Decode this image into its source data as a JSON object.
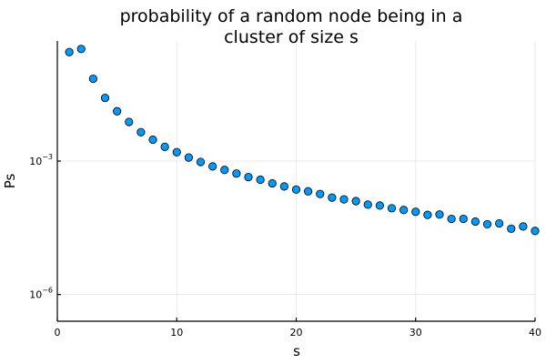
{
  "chart_data": {
    "type": "scatter",
    "title_lines": [
      "probability of a random node being in a",
      "cluster of size s"
    ],
    "xlabel": "s",
    "ylabel": "Ps",
    "xlim": [
      0,
      40
    ],
    "ylim_log10": [
      -6.6,
      -0.3
    ],
    "yscale": "log10",
    "grid": true,
    "legend": "none",
    "xticks": [
      0,
      10,
      20,
      30,
      40
    ],
    "yticks": [
      {
        "value_log10": -3,
        "base": "10",
        "exponent": "−3"
      },
      {
        "value_log10": -6,
        "base": "10",
        "exponent": "−6"
      }
    ],
    "marker_color": "#009AFA",
    "series": [
      {
        "x": [
          1,
          2,
          3,
          4,
          5,
          6,
          7,
          8,
          9,
          10,
          11,
          12,
          13,
          14,
          15,
          16,
          17,
          18,
          19,
          20,
          21,
          22,
          23,
          24,
          25,
          26,
          27,
          28,
          29,
          30,
          31,
          32,
          33,
          34,
          35,
          36,
          37,
          38,
          39,
          40
        ],
        "y_log10": [
          -0.55,
          -0.48,
          -1.15,
          -1.58,
          -1.88,
          -2.12,
          -2.35,
          -2.52,
          -2.68,
          -2.8,
          -2.92,
          -3.02,
          -3.12,
          -3.2,
          -3.28,
          -3.36,
          -3.42,
          -3.5,
          -3.57,
          -3.64,
          -3.68,
          -3.74,
          -3.82,
          -3.86,
          -3.9,
          -3.98,
          -4.0,
          -4.06,
          -4.1,
          -4.14,
          -4.21,
          -4.2,
          -4.3,
          -4.3,
          -4.36,
          -4.42,
          -4.4,
          -4.52,
          -4.47,
          -4.57
        ]
      }
    ]
  }
}
